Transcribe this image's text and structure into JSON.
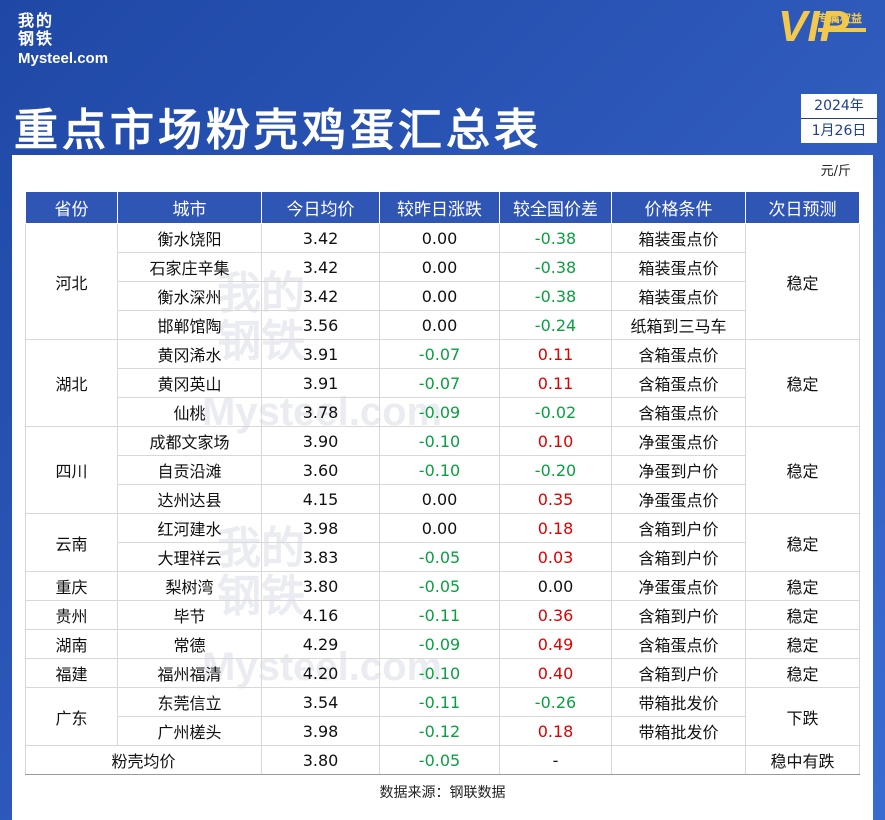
{
  "brand": {
    "logo_cn": "我的钢铁",
    "logo_en": "Mysteel.com",
    "vip_text": "VIP",
    "vip_tag": "专属权益"
  },
  "title": "重点市场粉壳鸡蛋汇总表",
  "date": {
    "year": "2024年",
    "day": "1月26日"
  },
  "unit": "元/斤",
  "colors": {
    "header_bg": "#2f55b5",
    "up": "#e00000",
    "down": "#0aa040",
    "page_bg": "#2a4fa8"
  },
  "table": {
    "headers": [
      "省份",
      "城市",
      "今日均价",
      "较昨日涨跌",
      "较全国价差",
      "价格条件",
      "次日预测"
    ],
    "rows": [
      {
        "province": "河北",
        "city": "衡水饶阳",
        "price": "3.42",
        "change": "0.00",
        "diff": "-0.38",
        "condition": "箱装蛋点价",
        "forecast": "稳定"
      },
      {
        "province": "",
        "city": "石家庄辛集",
        "price": "3.42",
        "change": "0.00",
        "diff": "-0.38",
        "condition": "箱装蛋点价",
        "forecast": ""
      },
      {
        "province": "",
        "city": "衡水深州",
        "price": "3.42",
        "change": "0.00",
        "diff": "-0.38",
        "condition": "箱装蛋点价",
        "forecast": ""
      },
      {
        "province": "",
        "city": "邯郸馆陶",
        "price": "3.56",
        "change": "0.00",
        "diff": "-0.24",
        "condition": "纸箱到三马车",
        "forecast": ""
      },
      {
        "province": "湖北",
        "city": "黄冈浠水",
        "price": "3.91",
        "change": "-0.07",
        "diff": "0.11",
        "condition": "含箱蛋点价",
        "forecast": "稳定"
      },
      {
        "province": "",
        "city": "黄冈英山",
        "price": "3.91",
        "change": "-0.07",
        "diff": "0.11",
        "condition": "含箱蛋点价",
        "forecast": ""
      },
      {
        "province": "",
        "city": "仙桃",
        "price": "3.78",
        "change": "-0.09",
        "diff": "-0.02",
        "condition": "含箱蛋点价",
        "forecast": ""
      },
      {
        "province": "四川",
        "city": "成都文家场",
        "price": "3.90",
        "change": "-0.10",
        "diff": "0.10",
        "condition": "净蛋蛋点价",
        "forecast": "稳定"
      },
      {
        "province": "",
        "city": "自贡沿滩",
        "price": "3.60",
        "change": "-0.10",
        "diff": "-0.20",
        "condition": "净蛋到户价",
        "forecast": ""
      },
      {
        "province": "",
        "city": "达州达县",
        "price": "4.15",
        "change": "0.00",
        "diff": "0.35",
        "condition": "净蛋蛋点价",
        "forecast": ""
      },
      {
        "province": "云南",
        "city": "红河建水",
        "price": "3.98",
        "change": "0.00",
        "diff": "0.18",
        "condition": "含箱到户价",
        "forecast": "稳定"
      },
      {
        "province": "",
        "city": "大理祥云",
        "price": "3.83",
        "change": "-0.05",
        "diff": "0.03",
        "condition": "含箱到户价",
        "forecast": ""
      },
      {
        "province": "重庆",
        "city": "梨树湾",
        "price": "3.80",
        "change": "-0.05",
        "diff": "0.00",
        "condition": "净蛋蛋点价",
        "forecast": "稳定"
      },
      {
        "province": "贵州",
        "city": "毕节",
        "price": "4.16",
        "change": "-0.11",
        "diff": "0.36",
        "condition": "含箱到户价",
        "forecast": "稳定"
      },
      {
        "province": "湖南",
        "city": "常德",
        "price": "4.29",
        "change": "-0.09",
        "diff": "0.49",
        "condition": "含箱蛋点价",
        "forecast": "稳定"
      },
      {
        "province": "福建",
        "city": "福州福清",
        "price": "4.20",
        "change": "-0.10",
        "diff": "0.40",
        "condition": "含箱到户价",
        "forecast": "稳定"
      },
      {
        "province": "广东",
        "city": "东莞信立",
        "price": "3.54",
        "change": "-0.11",
        "diff": "-0.26",
        "condition": "带箱批发价",
        "forecast": "下跌"
      },
      {
        "province": "",
        "city": "广州槎头",
        "price": "3.98",
        "change": "-0.12",
        "diff": "0.18",
        "condition": "带箱批发价",
        "forecast": ""
      }
    ],
    "average": {
      "label": "粉壳均价",
      "price": "3.80",
      "change": "-0.05",
      "diff": "-",
      "condition": "",
      "forecast": "稳中有跌"
    }
  },
  "source": "数据来源：钢联数据"
}
